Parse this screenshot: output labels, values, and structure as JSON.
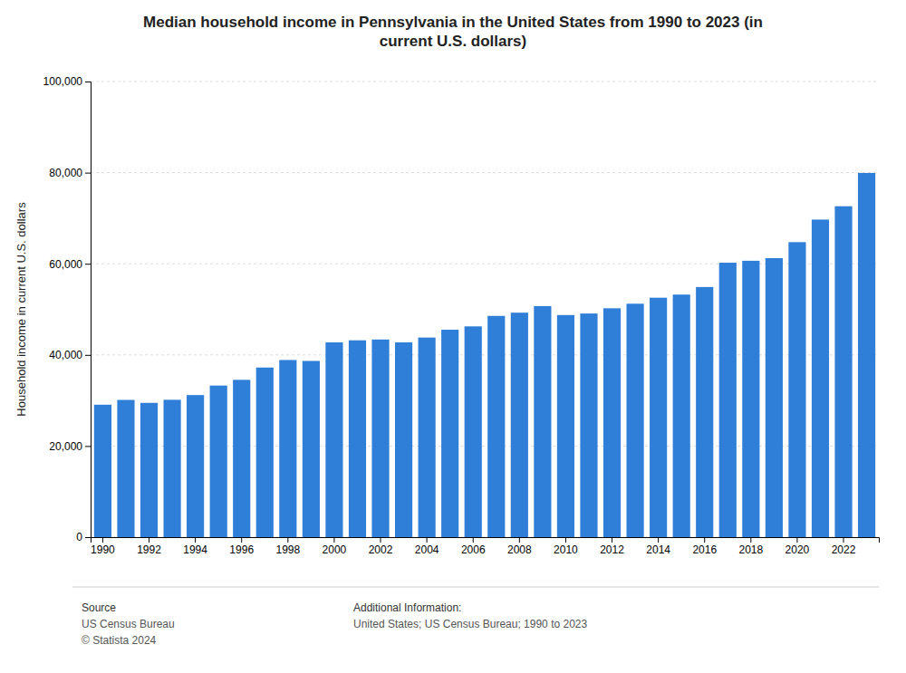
{
  "chart_data": {
    "type": "bar",
    "title": "Median household income in Pennsylvania in the United States from 1990 to 2023 (in\ncurrent U.S. dollars)",
    "y_label": "Household income in current U.S. dollars",
    "categories": [
      "1990",
      null,
      "1992",
      null,
      "1994",
      null,
      "1996",
      null,
      "1998",
      null,
      "2000",
      null,
      "2002",
      null,
      "2004",
      null,
      "2006",
      null,
      "2008",
      null,
      "2010",
      null,
      "2012",
      null,
      "2014",
      null,
      "2016",
      null,
      "2018",
      null,
      "2020",
      null,
      "2022",
      null
    ],
    "values": [
      29069,
      30116,
      29469,
      30144,
      31181,
      33270,
      34524,
      37226,
      38873,
      38669,
      42745,
      43197,
      43377,
      42745,
      43810,
      45521,
      46259,
      48554,
      49263,
      50713,
      48745,
      49081,
      50228,
      51230,
      52548,
      53234,
      54895,
      60228,
      60656,
      61237,
      64743,
      69693,
      72627,
      79933
    ],
    "color": "#2f7ed8",
    "ylim": [
      0,
      100000
    ],
    "yticks": [
      0,
      {
        "value": 20000,
        "label": "20,000"
      },
      {
        "value": 40000,
        "label": "40,000"
      },
      {
        "value": 60000,
        "label": "60,000"
      },
      {
        "value": 80000,
        "label": "80,000"
      },
      {
        "value": 100000,
        "label": "100,000"
      }
    ],
    "grid": true,
    "annotations": [
      "Source",
      "US Census Bureau\n© Statista 2024",
      "Additional Information:",
      "United States; US Census Bureau; 1990 to 2023"
    ]
  }
}
